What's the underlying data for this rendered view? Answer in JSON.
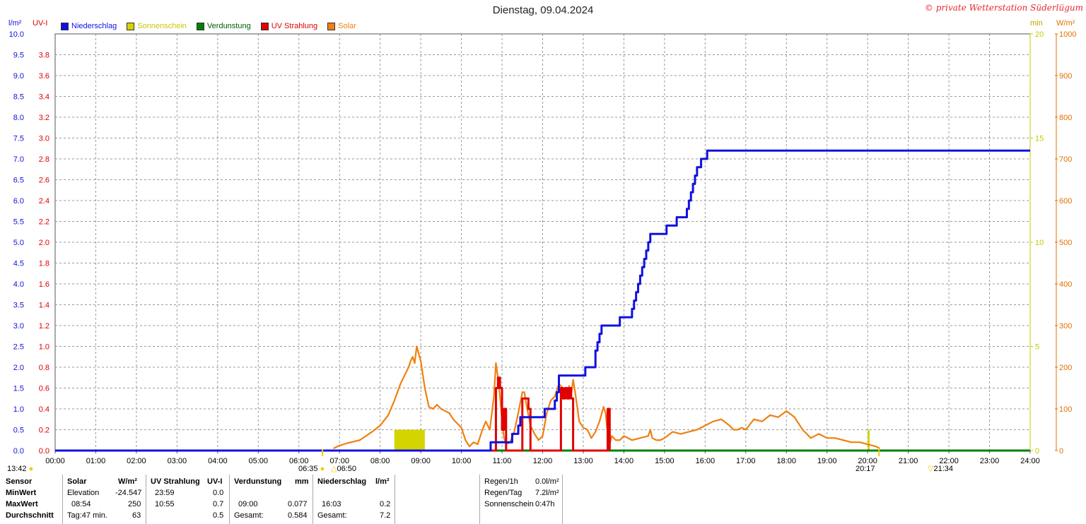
{
  "header": {
    "title": "Dienstag, 09.04.2024",
    "credit": "© private Wetterstation Süderlügum"
  },
  "units": {
    "left1": "l/m²",
    "left2": "UV-I",
    "right1": "min",
    "right2": "W/m²"
  },
  "legend": [
    {
      "label": "Niederschlag",
      "color": "#1010e0"
    },
    {
      "label": "Sonnenschein",
      "color": "#d4d400"
    },
    {
      "label": "Verdunstung",
      "color": "#008000"
    },
    {
      "label": "UV Strahlung",
      "color": "#e00000"
    },
    {
      "label": "Solar",
      "color": "#f08010"
    }
  ],
  "sun_markers": {
    "now_time": "13:42",
    "sunrise": "06:35",
    "civil_start": "06:50",
    "sunset": "20:17",
    "civil_end": "21:34"
  },
  "chart_data": {
    "type": "line",
    "x_ticks": [
      "00:00",
      "01:00",
      "02:00",
      "03:00",
      "04:00",
      "05:00",
      "06:00",
      "07:00",
      "08:00",
      "09:00",
      "10:00",
      "11:00",
      "12:00",
      "13:00",
      "14:00",
      "15:00",
      "16:00",
      "17:00",
      "18:00",
      "19:00",
      "20:00",
      "21:00",
      "22:00",
      "23:00",
      "24:00"
    ],
    "axes": {
      "precip": {
        "label": "l/m²",
        "range": [
          0,
          10
        ],
        "ticks": [
          "0.0",
          "0.5",
          "1.0",
          "1.5",
          "2.0",
          "2.5",
          "3.0",
          "3.5",
          "4.0",
          "4.5",
          "5.0",
          "5.5",
          "6.0",
          "6.5",
          "7.0",
          "7.5",
          "8.0",
          "8.5",
          "9.0",
          "9.5",
          "10.0"
        ]
      },
      "uv": {
        "label": "UV-I",
        "range": [
          0,
          4
        ],
        "ticks": [
          "0.0",
          "0.2",
          "0.4",
          "0.6",
          "0.8",
          "1.0",
          "1.2",
          "1.4",
          "1.6",
          "1.8",
          "2.0",
          "2.2",
          "2.4",
          "2.6",
          "2.8",
          "3.0",
          "3.2",
          "3.4",
          "3.6",
          "3.8"
        ]
      },
      "sunshine": {
        "label": "min",
        "range": [
          0,
          20
        ],
        "ticks": [
          "0",
          "5",
          "10",
          "15",
          "20"
        ]
      },
      "solar": {
        "label": "W/m²",
        "range": [
          0,
          1000
        ],
        "ticks": [
          "0",
          "100",
          "200",
          "300",
          "400",
          "500",
          "600",
          "700",
          "800",
          "900",
          "1000"
        ]
      }
    },
    "grid": true,
    "series": [
      {
        "name": "Niederschlag",
        "axis": "precip",
        "color": "#1010e0",
        "x": [
          0,
          10.7,
          10.72,
          11.2,
          11.25,
          11.4,
          11.45,
          11.55,
          11.6,
          12.0,
          12.05,
          12.3,
          12.35,
          12.4,
          13.0,
          13.05,
          13.3,
          13.35,
          13.4,
          13.45,
          13.5,
          13.55,
          13.6,
          13.9,
          14.0,
          14.2,
          14.25,
          14.3,
          14.35,
          14.4,
          14.45,
          14.5,
          14.55,
          14.6,
          14.65,
          14.7,
          15.0,
          15.05,
          15.2,
          15.3,
          15.5,
          15.55,
          15.6,
          15.65,
          15.7,
          15.75,
          15.8,
          15.85,
          15.9,
          16.05,
          24
        ],
        "y": [
          0,
          0,
          0.2,
          0.2,
          0.4,
          0.6,
          0.8,
          0.8,
          0.8,
          0.8,
          1.0,
          1.2,
          1.4,
          1.8,
          1.8,
          2.0,
          2.4,
          2.6,
          2.8,
          3.0,
          3.0,
          3.0,
          3.0,
          3.2,
          3.2,
          3.4,
          3.6,
          3.8,
          4.0,
          4.2,
          4.4,
          4.6,
          4.8,
          5.0,
          5.2,
          5.2,
          5.2,
          5.4,
          5.4,
          5.6,
          5.6,
          5.8,
          6.0,
          6.2,
          6.4,
          6.6,
          6.8,
          6.8,
          7.0,
          7.2,
          7.2
        ]
      },
      {
        "name": "Sonnenschein",
        "axis": "sunshine",
        "color": "#d4d400",
        "x": [
          8.35,
          9.1,
          20.0,
          20.05
        ],
        "y": [
          1.0,
          1.0,
          1.0,
          1.0
        ]
      },
      {
        "name": "Verdunstung",
        "axis": "precip",
        "color": "#008000",
        "x": [
          0,
          9.0,
          24
        ],
        "y": [
          0,
          0.0,
          0.0
        ]
      },
      {
        "name": "UV Strahlung",
        "axis": "uv",
        "color": "#e00000",
        "x": [
          10.75,
          10.85,
          10.9,
          10.95,
          11.0,
          11.05,
          11.1,
          11.45,
          11.5,
          11.55,
          11.6,
          11.65,
          11.7,
          12.4,
          12.45,
          12.5,
          12.55,
          12.6,
          12.65,
          12.7,
          12.75,
          13.55,
          13.6,
          13.65
        ],
        "y": [
          0,
          0.6,
          0.7,
          0.6,
          0.2,
          0.4,
          0,
          0,
          0.5,
          0.5,
          0.5,
          0.4,
          0,
          0,
          0.6,
          0.5,
          0.6,
          0.5,
          0.6,
          0.5,
          0,
          0,
          0.4,
          0
        ]
      },
      {
        "name": "Solar",
        "axis": "solar",
        "color": "#f08010",
        "x": [
          6.85,
          7.0,
          7.2,
          7.5,
          7.8,
          8.0,
          8.2,
          8.35,
          8.5,
          8.6,
          8.7,
          8.75,
          8.8,
          8.85,
          8.9,
          9.0,
          9.1,
          9.2,
          9.3,
          9.4,
          9.5,
          9.6,
          9.7,
          9.8,
          9.9,
          10.0,
          10.1,
          10.2,
          10.3,
          10.4,
          10.5,
          10.6,
          10.7,
          10.8,
          10.85,
          10.9,
          10.95,
          11.0,
          11.05,
          11.1,
          11.2,
          11.3,
          11.4,
          11.5,
          11.55,
          11.6,
          11.7,
          11.8,
          11.9,
          12.0,
          12.1,
          12.2,
          12.3,
          12.4,
          12.5,
          12.6,
          12.65,
          12.7,
          12.75,
          12.8,
          12.9,
          13.0,
          13.1,
          13.2,
          13.3,
          13.4,
          13.5,
          13.55,
          13.6,
          13.65,
          13.7,
          13.8,
          13.9,
          14.0,
          14.2,
          14.4,
          14.6,
          14.65,
          14.7,
          14.8,
          14.9,
          15.0,
          15.2,
          15.4,
          15.6,
          15.8,
          16.0,
          16.2,
          16.4,
          16.6,
          16.7,
          16.8,
          16.9,
          17.0,
          17.2,
          17.4,
          17.6,
          17.8,
          18.0,
          18.2,
          18.4,
          18.5,
          18.6,
          18.8,
          19.0,
          19.2,
          19.4,
          19.6,
          19.8,
          20.0,
          20.2,
          20.3
        ],
        "y": [
          5,
          12,
          18,
          25,
          45,
          60,
          85,
          120,
          160,
          180,
          200,
          215,
          225,
          210,
          250,
          215,
          150,
          105,
          100,
          110,
          100,
          95,
          90,
          75,
          65,
          55,
          25,
          10,
          20,
          15,
          45,
          70,
          50,
          130,
          210,
          175,
          130,
          70,
          30,
          15,
          20,
          45,
          90,
          140,
          140,
          110,
          60,
          40,
          25,
          35,
          90,
          120,
          130,
          160,
          150,
          125,
          155,
          130,
          170,
          140,
          70,
          55,
          50,
          30,
          45,
          70,
          105,
          90,
          40,
          15,
          35,
          25,
          25,
          35,
          25,
          30,
          35,
          50,
          30,
          25,
          25,
          30,
          45,
          40,
          45,
          50,
          60,
          70,
          75,
          60,
          50,
          50,
          55,
          50,
          75,
          70,
          85,
          80,
          95,
          80,
          50,
          40,
          30,
          40,
          30,
          30,
          25,
          20,
          20,
          15,
          10,
          5
        ]
      }
    ]
  },
  "stats": {
    "sensor": {
      "header": "Sensor",
      "min": "MinWert",
      "max": "MaxWert",
      "avg": "Durchschnitt"
    },
    "solar": {
      "header": "Solar",
      "unit": "W/m²",
      "min_label": "Elevation",
      "min_val": "-24.547",
      "max_time": "08:54",
      "max_val": "250",
      "avg_label": "Tag:47 min.",
      "avg_val": "63"
    },
    "uv": {
      "header": "UV Strahlung",
      "unit": "UV-I",
      "min_time": "23:59",
      "min_val": "0.0",
      "max_time": "10:55",
      "max_val": "0.7",
      "avg_val": "0.5"
    },
    "verdunstung": {
      "header": "Verdunstung",
      "unit": "mm",
      "max_time": "09:00",
      "max_val": "0.077",
      "total_label": "Gesamt:",
      "total_val": "0.584"
    },
    "niederschlag": {
      "header": "Niederschlag",
      "unit": "l/m²",
      "max_time": "16:03",
      "max_val": "0.2",
      "total_label": "Gesamt:",
      "total_val": "7.2"
    },
    "summary": [
      {
        "label": "Regen/1h",
        "value": "0.0l/m²"
      },
      {
        "label": "Regen/Tag",
        "value": "7.2l/m²"
      },
      {
        "label": "Sonnenschein",
        "value": "0:47h"
      }
    ]
  }
}
